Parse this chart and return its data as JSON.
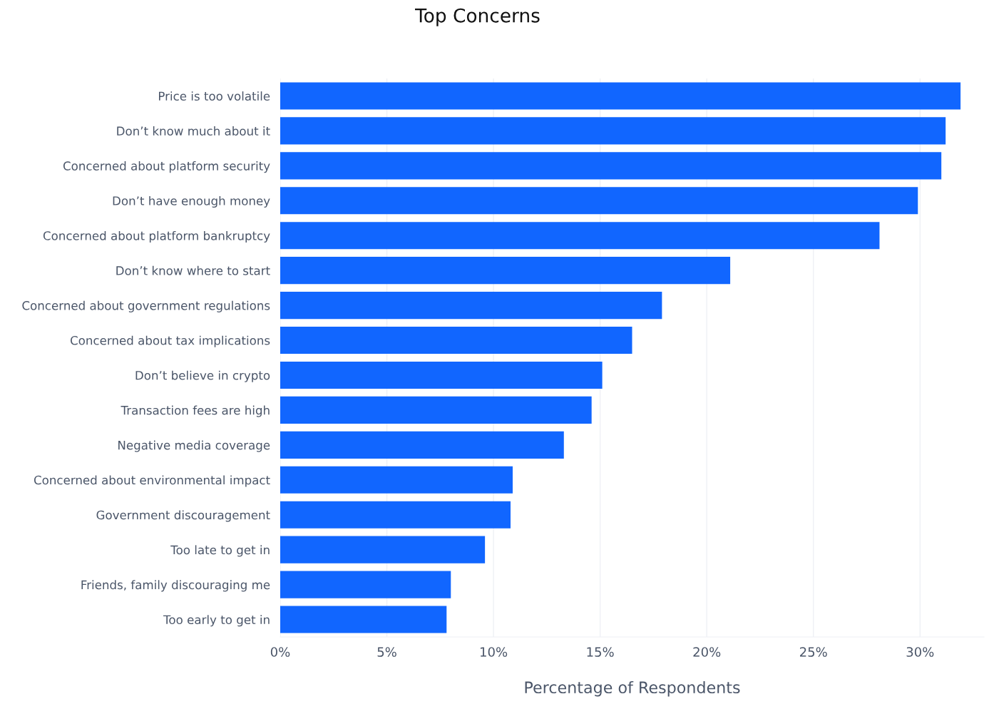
{
  "chart_data": {
    "type": "bar",
    "orientation": "horizontal",
    "title": "Top Concerns",
    "xlabel": "Percentage of Respondents",
    "categories": [
      "Price is too volatile",
      "Don’t know much about it",
      "Concerned about platform security",
      "Don’t have enough money",
      "Concerned about platform bankruptcy",
      "Don’t know where to start",
      "Concerned about government regulations",
      "Concerned about tax implications",
      "Don’t believe in crypto",
      "Transaction fees are high",
      "Negative media coverage",
      "Concerned about environmental impact",
      "Government discouragement",
      "Too late to get in",
      "Friends, family discouraging me",
      "Too early to get in"
    ],
    "values": [
      31.9,
      31.2,
      31.0,
      29.9,
      28.1,
      21.1,
      17.9,
      16.5,
      15.1,
      14.6,
      13.3,
      10.9,
      10.8,
      9.6,
      8.0,
      7.8
    ],
    "color": "#1166ff",
    "xlim": [
      0,
      33
    ],
    "xticks": [
      {
        "value": 0,
        "label": "0%"
      },
      {
        "value": 5,
        "label": "5%"
      },
      {
        "value": 10,
        "label": "10%"
      },
      {
        "value": 15,
        "label": "15%"
      },
      {
        "value": 20,
        "label": "20%"
      },
      {
        "value": 25,
        "label": "25%"
      },
      {
        "value": 30,
        "label": "30%"
      }
    ],
    "grid": "x",
    "legend": false
  }
}
